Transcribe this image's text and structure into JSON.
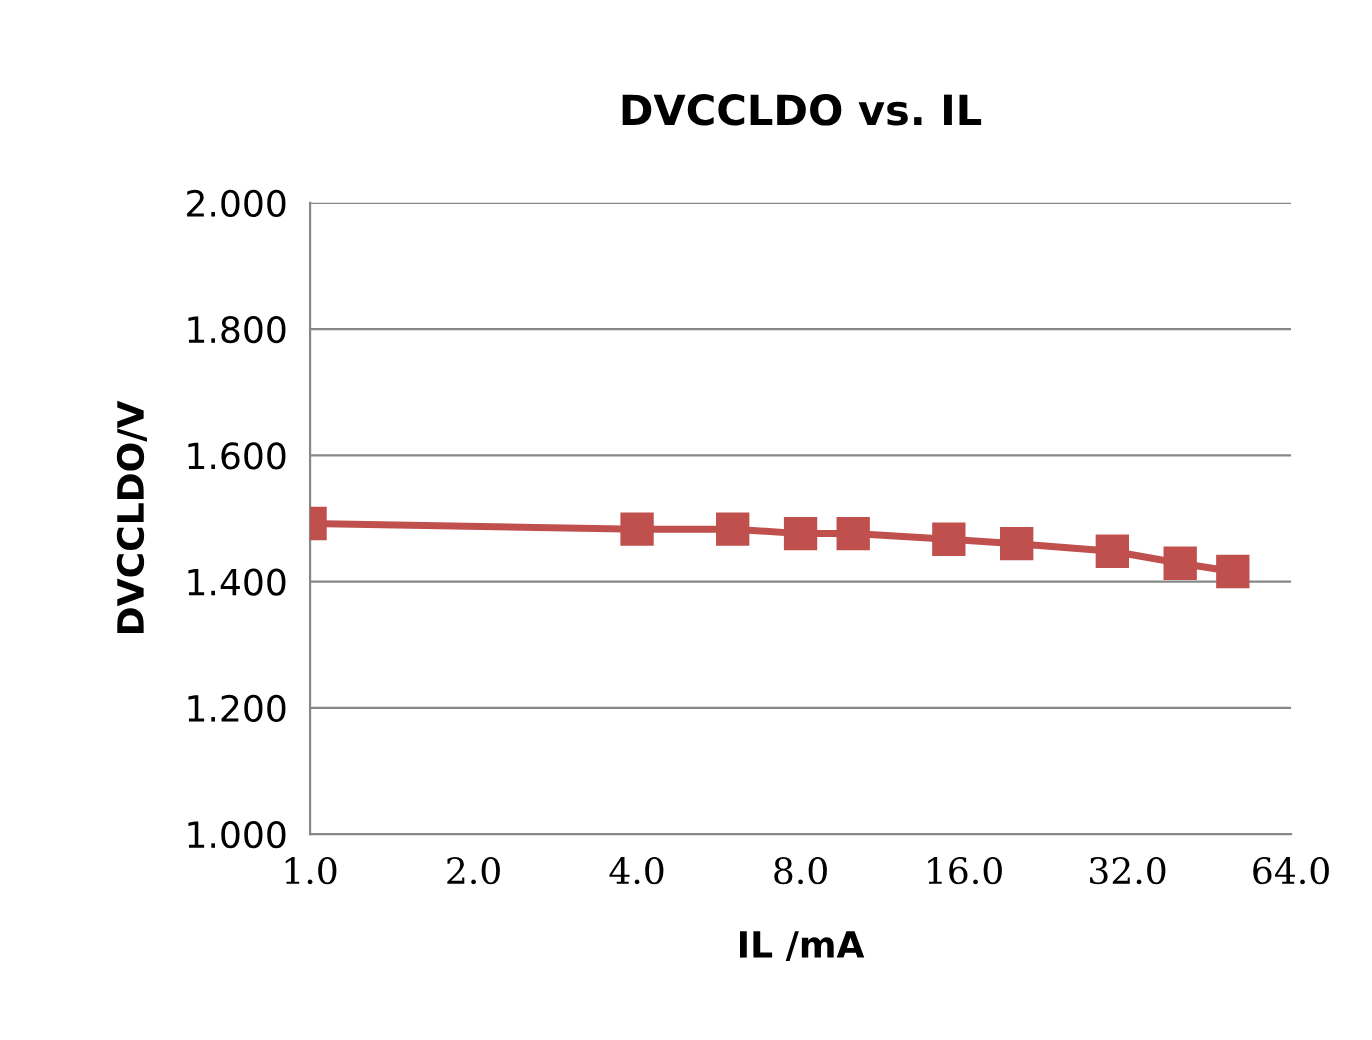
{
  "chart_data": {
    "type": "line",
    "title": "DVCCLDO vs. IL",
    "xlabel": "IL /mA",
    "ylabel": "DVCCLDO/V",
    "x": [
      1,
      4,
      6,
      8,
      10,
      15,
      20,
      30,
      40,
      50
    ],
    "series": [
      {
        "color": "#c0504d",
        "values": [
          1.492,
          1.483,
          1.483,
          1.476,
          1.476,
          1.467,
          1.46,
          1.448,
          1.429,
          1.416
        ]
      }
    ],
    "log": "x",
    "xlim": [
      1,
      64
    ],
    "xticks": [
      {
        "value": 1,
        "label": "1.0"
      },
      {
        "value": 2,
        "label": "2.0"
      },
      {
        "value": 4,
        "label": "4.0"
      },
      {
        "value": 8,
        "label": "8.0"
      },
      {
        "value": 16,
        "label": "16.0"
      },
      {
        "value": 32,
        "label": "32.0"
      },
      {
        "value": 64,
        "label": "64.0"
      }
    ],
    "ylim": [
      1.0,
      2.0
    ],
    "yticks": [
      {
        "value": 1.0,
        "label": "1.000"
      },
      {
        "value": 1.2,
        "label": "1.200"
      },
      {
        "value": 1.4,
        "label": "1.400"
      },
      {
        "value": 1.6,
        "label": "1.600"
      },
      {
        "value": 1.8,
        "label": "1.800"
      },
      {
        "value": 2.0,
        "label": "2.000"
      }
    ],
    "grid": "y",
    "marker": "square",
    "line_style": "solid"
  }
}
